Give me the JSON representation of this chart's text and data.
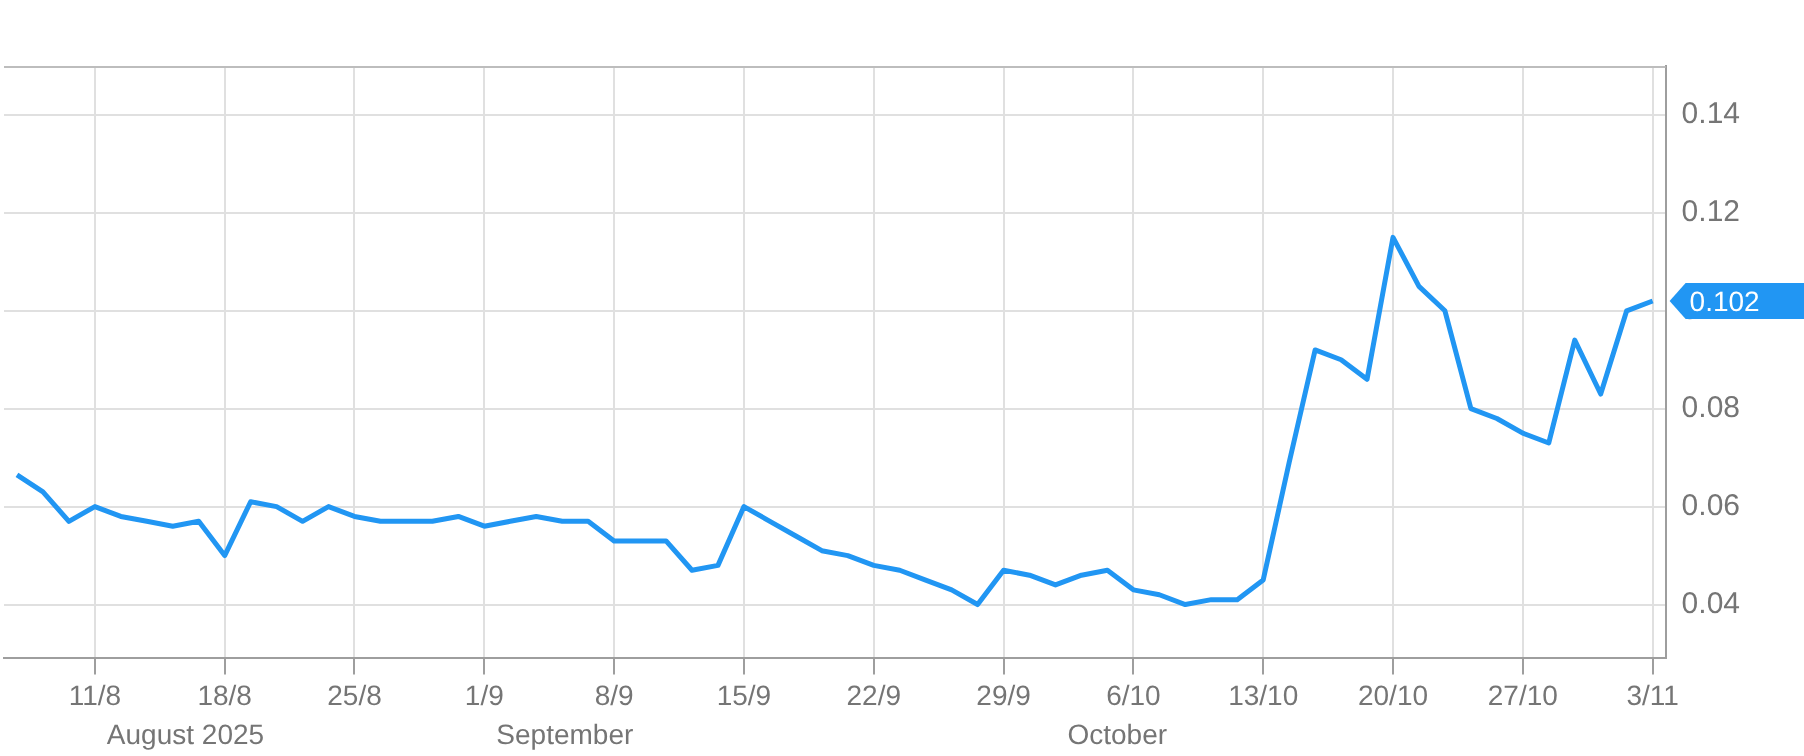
{
  "chart_data": {
    "type": "line",
    "categories": [
      null,
      null,
      null,
      "11/8",
      null,
      null,
      null,
      null,
      "18/8",
      null,
      null,
      null,
      null,
      "25/8",
      null,
      null,
      null,
      null,
      "1/9",
      null,
      null,
      null,
      null,
      "8/9",
      null,
      null,
      null,
      null,
      "15/9",
      null,
      null,
      null,
      null,
      "22/9",
      null,
      null,
      null,
      null,
      "29/9",
      null,
      null,
      null,
      null,
      "6/10",
      null,
      null,
      null,
      null,
      "13/10",
      null,
      null,
      null,
      null,
      "20/10",
      null,
      null,
      null,
      null,
      "27/10",
      null,
      null,
      null,
      null,
      "3/11"
    ],
    "series": [
      {
        "color": "#2196f3",
        "values": [
          0.0665,
          0.063,
          0.057,
          0.06,
          0.058,
          0.057,
          0.056,
          0.057,
          0.05,
          0.061,
          0.06,
          0.057,
          0.06,
          0.058,
          0.057,
          0.057,
          0.057,
          0.058,
          0.056,
          0.057,
          0.058,
          0.057,
          0.057,
          0.053,
          0.053,
          0.053,
          0.047,
          0.048,
          0.06,
          0.057,
          0.054,
          0.051,
          0.05,
          0.048,
          0.047,
          0.045,
          0.043,
          0.04,
          0.047,
          0.046,
          0.044,
          0.046,
          0.047,
          0.043,
          0.042,
          0.04,
          0.041,
          0.041,
          0.045,
          0.069,
          0.092,
          0.09,
          0.086,
          0.115,
          0.105,
          0.1,
          0.08,
          0.078,
          0.075,
          0.073,
          0.094,
          0.083,
          0.1,
          0.102
        ],
        "value_labels": [
          null,
          null,
          null,
          null,
          null,
          null,
          null,
          null,
          null,
          null,
          null,
          null,
          null,
          null,
          null,
          null,
          null,
          null,
          null,
          null,
          null,
          null,
          null,
          null,
          null,
          null,
          null,
          null,
          null,
          null,
          null,
          null,
          null,
          null,
          null,
          null,
          null,
          null,
          null,
          null,
          null,
          null,
          null,
          null,
          null,
          null,
          null,
          null,
          null,
          null,
          null,
          null,
          null,
          null,
          null,
          null,
          null,
          null,
          null,
          null,
          null,
          null,
          null,
          "0.102"
        ]
      }
    ],
    "ylim": [
      0.029,
      0.15
    ],
    "yticks": [
      0.04,
      0.06,
      0.08,
      0.1,
      0.12,
      0.14
    ],
    "grid": true,
    "marker": "none",
    "line_style": "solid",
    "annotations": [
      "August 2025",
      "September",
      "October"
    ]
  }
}
